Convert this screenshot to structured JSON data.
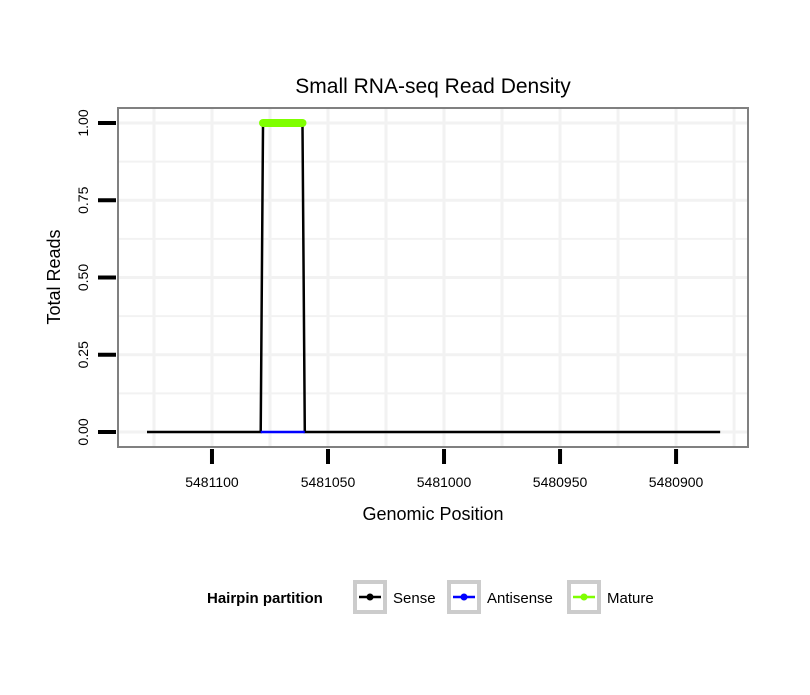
{
  "chart_data": {
    "type": "line",
    "title": "Small RNA-seq Read Density",
    "xlabel": "Genomic Position",
    "ylabel": "Total Reads",
    "xlim": [
      5481140.5,
      5480869
    ],
    "x_reversed": true,
    "ylim": [
      -0.04,
      1.05
    ],
    "x_ticks": [
      5481100,
      5481050,
      5481000,
      5480950,
      5480900
    ],
    "x_tick_labels": [
      "5481100",
      "5481050",
      "5481000",
      "5480950",
      "5480900"
    ],
    "y_ticks": [
      0,
      0.25,
      0.5,
      0.75,
      1
    ],
    "y_tick_labels": [
      "0.00",
      "0.25",
      "0.50",
      "0.75",
      "1.00"
    ],
    "grid": true,
    "legend": {
      "title": "Hairpin partition",
      "position": "bottom"
    },
    "series": [
      {
        "name": "Sense",
        "color": "#000000",
        "x": [
          5481128,
          5481079,
          5481078,
          5481061,
          5481060,
          5480881
        ],
        "y": [
          0,
          0,
          1,
          1,
          0,
          0
        ]
      },
      {
        "name": "Antisense",
        "color": "#0000ff",
        "x": [
          5481079,
          5481060
        ],
        "y": [
          0,
          0
        ]
      },
      {
        "name": "Mature",
        "color": "#7fff00",
        "x": [
          5481078,
          5481061
        ],
        "y": [
          1,
          1
        ]
      }
    ]
  }
}
